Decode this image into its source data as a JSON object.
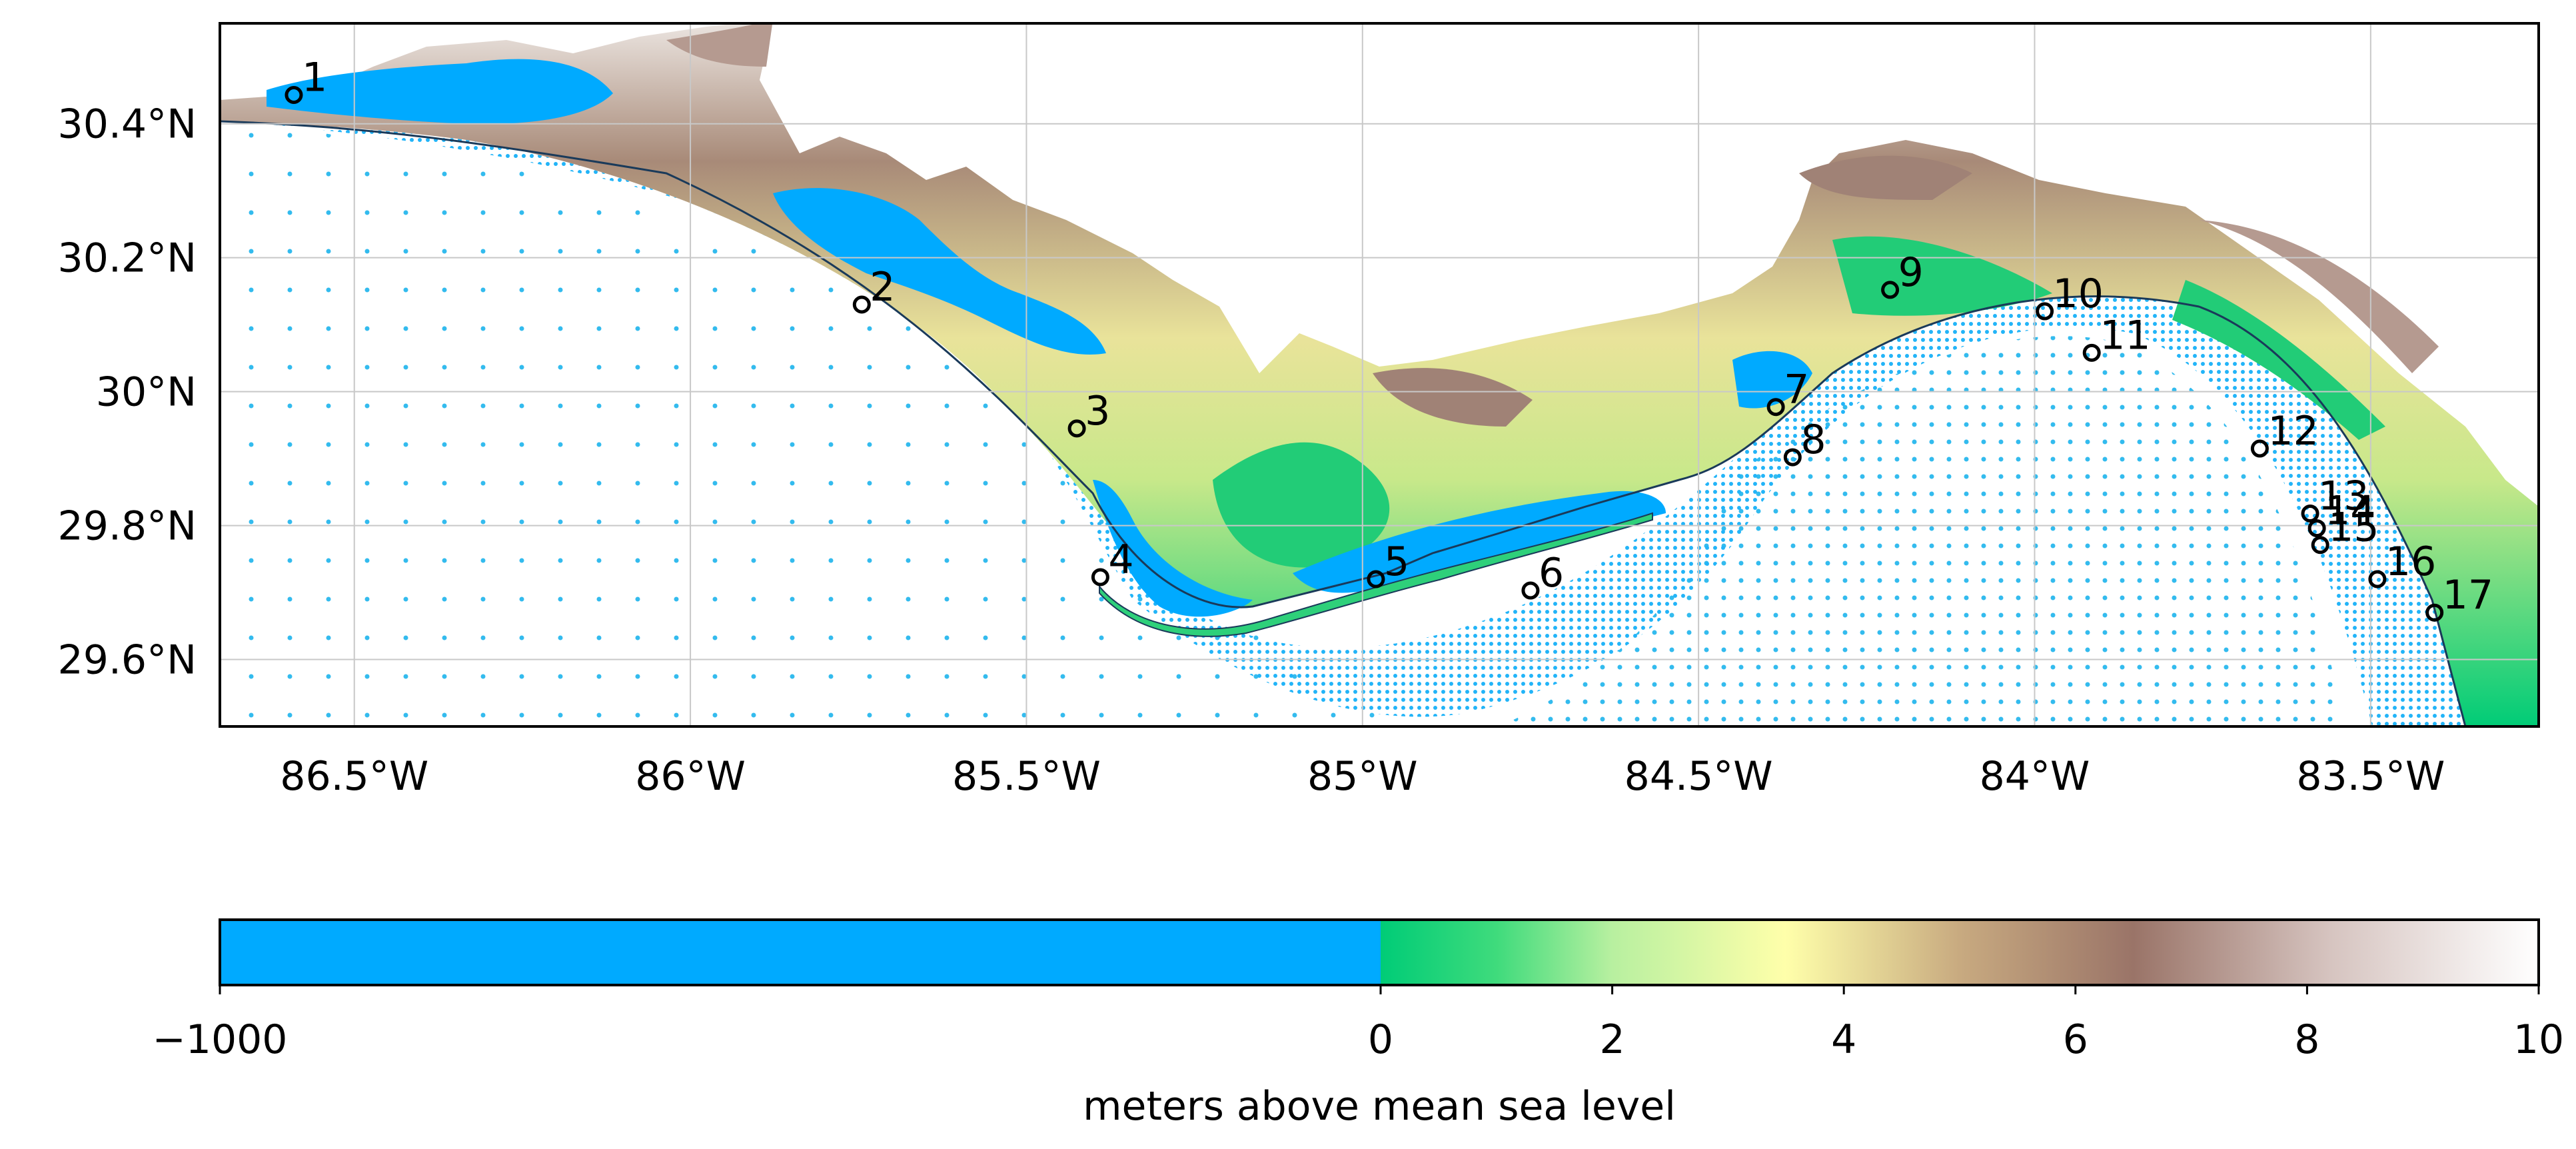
{
  "map": {
    "lon_range": [
      -86.7,
      -83.25
    ],
    "lat_range": [
      29.5,
      30.55
    ],
    "lon_ticks": [
      {
        "value": -86.5,
        "label": "86.5°W"
      },
      {
        "value": -86.0,
        "label": "86°W"
      },
      {
        "value": -85.5,
        "label": "85.5°W"
      },
      {
        "value": -85.0,
        "label": "85°W"
      },
      {
        "value": -84.5,
        "label": "84.5°W"
      },
      {
        "value": -84.0,
        "label": "84°W"
      },
      {
        "value": -83.5,
        "label": "83.5°W"
      }
    ],
    "lat_ticks": [
      {
        "value": 30.4,
        "label": "30.4°N"
      },
      {
        "value": 30.2,
        "label": "30.2°N"
      },
      {
        "value": 30.0,
        "label": "30°N"
      },
      {
        "value": 29.8,
        "label": "29.8°N"
      },
      {
        "value": 29.6,
        "label": "29.6°N"
      }
    ],
    "stations": [
      {
        "label": "1",
        "lon": -86.59,
        "lat": 30.443
      },
      {
        "label": "2",
        "lon": -85.745,
        "lat": 30.13
      },
      {
        "label": "3",
        "lon": -85.425,
        "lat": 29.945
      },
      {
        "label": "4",
        "lon": -85.39,
        "lat": 29.723
      },
      {
        "label": "5",
        "lon": -84.98,
        "lat": 29.72
      },
      {
        "label": "6",
        "lon": -84.75,
        "lat": 29.703
      },
      {
        "label": "7",
        "lon": -84.385,
        "lat": 29.977
      },
      {
        "label": "8",
        "lon": -84.36,
        "lat": 29.902
      },
      {
        "label": "9",
        "lon": -84.215,
        "lat": 30.152
      },
      {
        "label": "10",
        "lon": -83.985,
        "lat": 30.12
      },
      {
        "label": "11",
        "lon": -83.915,
        "lat": 30.058
      },
      {
        "label": "12",
        "lon": -83.665,
        "lat": 29.915
      },
      {
        "label": "13",
        "lon": -83.59,
        "lat": 29.818
      },
      {
        "label": "14",
        "lon": -83.58,
        "lat": 29.796
      },
      {
        "label": "15",
        "lon": -83.575,
        "lat": 29.771
      },
      {
        "label": "16",
        "lon": -83.49,
        "lat": 29.72
      },
      {
        "label": "17",
        "lon": -83.405,
        "lat": 29.67
      }
    ]
  },
  "colorbar": {
    "ticks": [
      {
        "value": -1000,
        "label": "−1000"
      },
      {
        "value": 0,
        "label": "0"
      },
      {
        "value": 2,
        "label": "2"
      },
      {
        "value": 4,
        "label": "4"
      },
      {
        "value": 6,
        "label": "6"
      },
      {
        "value": 8,
        "label": "8"
      },
      {
        "value": 10,
        "label": "10"
      }
    ],
    "label": "meters above mean sea level",
    "colors": {
      "water": "#00aaff",
      "low_land": "#00cc77",
      "mid_land": "#ffffaa",
      "high_land": "#9a7468",
      "top": "#ffffff"
    }
  }
}
